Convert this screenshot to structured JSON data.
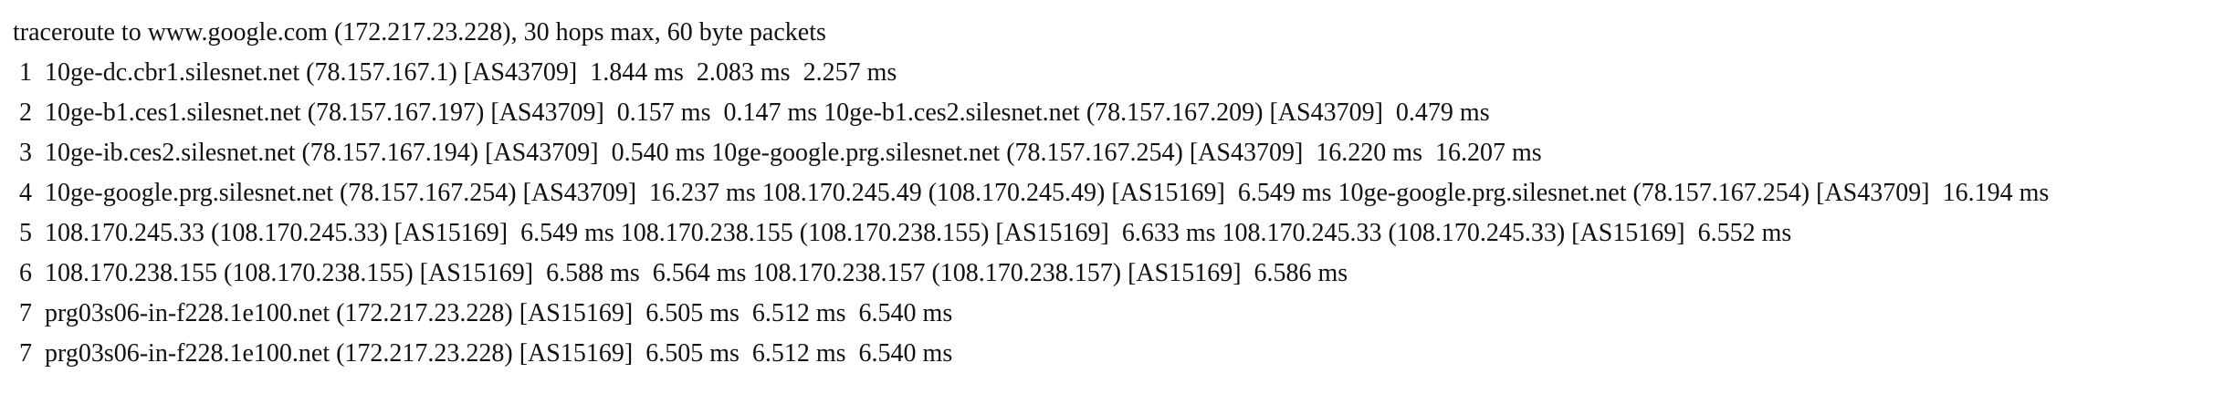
{
  "traceroute": {
    "header": "traceroute to www.google.com (172.217.23.228), 30 hops max, 60 byte packets",
    "lines": [
      " 1  10ge-dc.cbr1.silesnet.net (78.157.167.1) [AS43709]  1.844 ms  2.083 ms  2.257 ms",
      " 2  10ge-b1.ces1.silesnet.net (78.157.167.197) [AS43709]  0.157 ms  0.147 ms 10ge-b1.ces2.silesnet.net (78.157.167.209) [AS43709]  0.479 ms",
      " 3  10ge-ib.ces2.silesnet.net (78.157.167.194) [AS43709]  0.540 ms 10ge-google.prg.silesnet.net (78.157.167.254) [AS43709]  16.220 ms  16.207 ms",
      " 4  10ge-google.prg.silesnet.net (78.157.167.254) [AS43709]  16.237 ms 108.170.245.49 (108.170.245.49) [AS15169]  6.549 ms 10ge-google.prg.silesnet.net (78.157.167.254) [AS43709]  16.194 ms",
      " 5  108.170.245.33 (108.170.245.33) [AS15169]  6.549 ms 108.170.238.155 (108.170.238.155) [AS15169]  6.633 ms 108.170.245.33 (108.170.245.33) [AS15169]  6.552 ms",
      " 6  108.170.238.155 (108.170.238.155) [AS15169]  6.588 ms  6.564 ms 108.170.238.157 (108.170.238.157) [AS15169]  6.586 ms",
      " 7  prg03s06-in-f228.1e100.net (172.217.23.228) [AS15169]  6.505 ms  6.512 ms  6.540 ms",
      " 7  prg03s06-in-f228.1e100.net (172.217.23.228) [AS15169]  6.505 ms  6.512 ms  6.540 ms"
    ]
  }
}
